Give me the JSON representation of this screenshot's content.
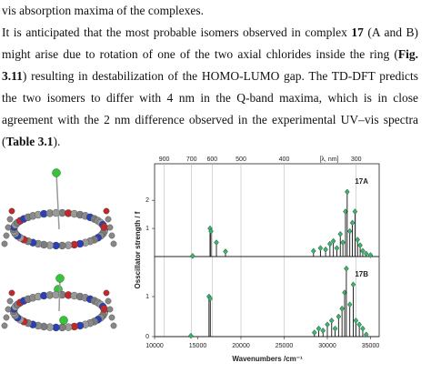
{
  "text": {
    "lines": [
      {
        "parts": [
          "vis absorption maxima of the complexes."
        ],
        "bold": [
          false
        ],
        "justify": false
      },
      {
        "parts": [
          "It is anticipated that the most probable isomers observed in complex ",
          "17",
          " (A and B)"
        ],
        "bold": [
          false,
          true,
          false
        ],
        "justify": true
      },
      {
        "parts": [
          "might arise due to rotation of one of the two axial chlorides inside the ring (",
          "Fig."
        ],
        "bold": [
          false,
          true
        ],
        "justify": true
      },
      {
        "parts": [
          "3.11",
          ") resulting in destabilization of the HOMO-LUMO gap. The TD-DFT predicts"
        ],
        "bold": [
          true,
          false
        ],
        "justify": true
      },
      {
        "parts": [
          "the two isomers to differ with 4 nm in the Q-band maxima, which is in close"
        ],
        "bold": [
          false
        ],
        "justify": true
      },
      {
        "parts": [
          "agreement with the 2 nm difference observed in the experimental UV–vis spectra"
        ],
        "bold": [
          false
        ],
        "justify": true
      },
      {
        "parts": [
          "(",
          "Table 3.1",
          ")."
        ],
        "bold": [
          false,
          true,
          false
        ],
        "justify": false
      }
    ]
  },
  "chart_data": [
    {
      "type": "stem",
      "label": "17A",
      "ylabel": "Osscillator strength / f",
      "color": "#3cb371",
      "x2ticks": [
        900,
        700,
        600,
        500,
        400,
        300
      ],
      "x2label": "[λ, nm]",
      "x": [
        14400,
        16420,
        16530,
        17160,
        18210,
        28400,
        29200,
        29800,
        30300,
        30700,
        31100,
        31500,
        31800,
        32100,
        32300,
        32600,
        32900,
        33200,
        33500,
        33800,
        34100,
        34500,
        35000
      ],
      "values": [
        0.02,
        1.0,
        0.9,
        0.5,
        0.18,
        0.2,
        0.3,
        0.25,
        0.45,
        0.55,
        0.3,
        0.8,
        0.5,
        1.6,
        2.3,
        0.9,
        1.2,
        1.6,
        0.6,
        0.4,
        0.2,
        0.1,
        0.05
      ],
      "ylim": [
        0,
        3.3
      ],
      "yticks": [
        1,
        2
      ]
    },
    {
      "type": "stem",
      "label": "17B",
      "xlabel": "Wavenumbers /cm⁻¹",
      "color": "#3cb371",
      "xlim": [
        10000,
        36000
      ],
      "xticks": [
        10000,
        15000,
        20000,
        25000,
        30000,
        35000
      ],
      "x": [
        14200,
        16300,
        16450,
        28500,
        29000,
        29500,
        30000,
        30500,
        30900,
        31300,
        31700,
        32000,
        32200,
        32600,
        33000,
        33300,
        33700,
        34100,
        34500
      ],
      "values": [
        0.02,
        1.0,
        0.95,
        0.1,
        0.2,
        0.15,
        0.3,
        0.4,
        0.2,
        0.5,
        0.7,
        1.1,
        1.7,
        0.8,
        1.3,
        0.4,
        0.3,
        0.2,
        0.05
      ],
      "ylim": [
        0,
        2
      ],
      "yticks": [
        0,
        1
      ]
    }
  ]
}
